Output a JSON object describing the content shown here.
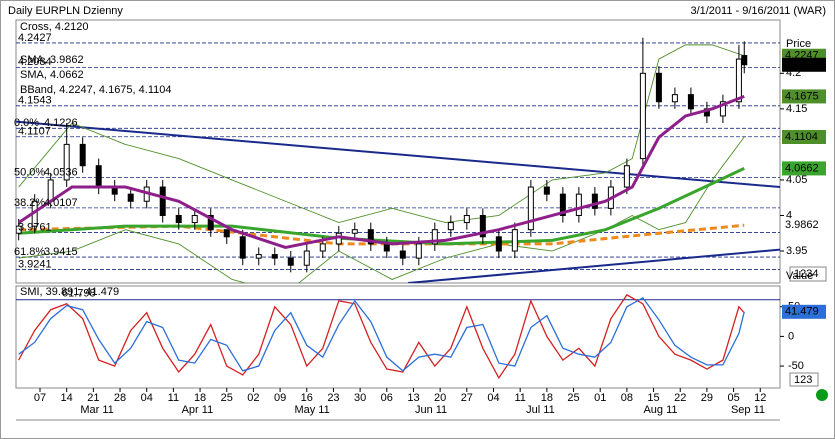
{
  "chart_data": [
    {
      "type": "candlestick",
      "title": "Daily EURPLN Dzienny",
      "subtitle": "3/1/2011 - 9/16/2011 (WAR)",
      "price_legend": "Cross, 4.2120",
      "axis_label": "Price",
      "corner_label": "1234",
      "candle_color": "#000000",
      "x": [
        0,
        3,
        6,
        9,
        12,
        15,
        18,
        21,
        24,
        27,
        30,
        33,
        36,
        39,
        42,
        45,
        48,
        51,
        54,
        57,
        60,
        63,
        66,
        69,
        72,
        75,
        78,
        81,
        84,
        87,
        90,
        93,
        96,
        99,
        102,
        105,
        108,
        111,
        114,
        117,
        120,
        123,
        126,
        129,
        132,
        135,
        136
      ],
      "open": [
        3.975,
        3.985,
        4.02,
        4.05,
        4.1,
        4.07,
        4.04,
        4.03,
        4.02,
        4.04,
        4.0,
        3.99,
        4.0,
        3.98,
        3.97,
        3.94,
        3.945,
        3.94,
        3.93,
        3.95,
        3.96,
        3.975,
        3.98,
        3.96,
        3.95,
        3.94,
        3.96,
        3.98,
        3.99,
        4.0,
        3.97,
        3.95,
        3.98,
        4.04,
        4.03,
        4.0,
        4.03,
        4.01,
        4.04,
        4.08,
        4.2,
        4.16,
        4.17,
        4.15,
        4.14,
        4.16,
        4.225
      ],
      "high": [
        3.995,
        4.03,
        4.06,
        4.13,
        4.11,
        4.08,
        4.05,
        4.04,
        4.05,
        4.05,
        4.01,
        4.01,
        4.01,
        3.98,
        3.98,
        3.955,
        3.955,
        3.95,
        3.96,
        3.97,
        3.985,
        3.99,
        3.99,
        3.97,
        3.96,
        3.97,
        3.99,
        4.0,
        4.01,
        4.01,
        3.98,
        3.99,
        4.05,
        4.05,
        4.04,
        4.04,
        4.04,
        4.05,
        4.08,
        4.25,
        4.21,
        4.18,
        4.18,
        4.16,
        4.17,
        4.24,
        4.245
      ],
      "low": [
        3.965,
        3.975,
        4.01,
        4.04,
        4.06,
        4.03,
        4.02,
        4.01,
        4.01,
        3.99,
        3.98,
        3.98,
        3.97,
        3.96,
        3.93,
        3.93,
        3.93,
        3.92,
        3.92,
        3.94,
        3.95,
        3.965,
        3.95,
        3.94,
        3.93,
        3.93,
        3.95,
        3.97,
        3.98,
        3.96,
        3.94,
        3.94,
        3.97,
        4.02,
        3.99,
        3.99,
        4.0,
        4.0,
        4.03,
        4.07,
        4.15,
        4.15,
        4.14,
        4.13,
        4.13,
        4.15,
        4.2
      ],
      "close": [
        3.985,
        4.02,
        4.05,
        4.1,
        4.07,
        4.04,
        4.03,
        4.02,
        4.04,
        4.0,
        3.99,
        4.0,
        3.98,
        3.97,
        3.94,
        3.945,
        3.94,
        3.93,
        3.95,
        3.96,
        3.975,
        3.98,
        3.96,
        3.95,
        3.94,
        3.96,
        3.98,
        3.99,
        4.0,
        3.97,
        3.95,
        3.98,
        4.04,
        4.03,
        4.0,
        4.03,
        4.01,
        4.04,
        4.07,
        4.2,
        4.16,
        4.17,
        4.15,
        4.14,
        4.16,
        4.22,
        4.212
      ],
      "xlim": [
        -0.5,
        142.7
      ],
      "ylim": [
        3.905,
        4.275
      ],
      "yticks": [
        4.2,
        4.15,
        4.05,
        4,
        3.95
      ],
      "xticks": [
        {
          "value": 4,
          "label": "07"
        },
        {
          "value": 9,
          "label": "14"
        },
        {
          "value": 14,
          "label": "21"
        },
        {
          "value": 19,
          "label": "28"
        },
        {
          "value": 24,
          "label": "04"
        },
        {
          "value": 29,
          "label": "11"
        },
        {
          "value": 34,
          "label": "18"
        },
        {
          "value": 39,
          "label": "25"
        },
        {
          "value": 44,
          "label": "02"
        },
        {
          "value": 49,
          "label": "09"
        },
        {
          "value": 54,
          "label": "16"
        },
        {
          "value": 59,
          "label": "23"
        },
        {
          "value": 64,
          "label": "30"
        },
        {
          "value": 69,
          "label": "06"
        },
        {
          "value": 74,
          "label": "13"
        },
        {
          "value": 79,
          "label": "20"
        },
        {
          "value": 84,
          "label": "27"
        },
        {
          "value": 89,
          "label": "04"
        },
        {
          "value": 94,
          "label": "11"
        },
        {
          "value": 99,
          "label": "18"
        },
        {
          "value": 104,
          "label": "25"
        },
        {
          "value": 109,
          "label": "01"
        },
        {
          "value": 114,
          "label": "08"
        },
        {
          "value": 119,
          "label": "15"
        },
        {
          "value": 124,
          "label": "22"
        },
        {
          "value": 129,
          "label": "29"
        },
        {
          "value": 134,
          "label": "05"
        },
        {
          "value": 139,
          "label": "12"
        }
      ],
      "month_ticks": [
        {
          "value": 14.7,
          "label": "Mar 11"
        },
        {
          "value": 33.5,
          "label": "Apr 11"
        },
        {
          "value": 55,
          "label": "May 11"
        },
        {
          "value": 77.3,
          "label": "Jun 11"
        },
        {
          "value": 97.8,
          "label": "Jul 11"
        },
        {
          "value": 120.3,
          "label": "Aug 11"
        },
        {
          "value": 136.7,
          "label": "Sep 11"
        }
      ],
      "bband": {
        "name": "BBand, 4.2247, 4.1675, 4.1104",
        "color": "#4f8f2a",
        "middle_color": "#8e1f8a",
        "x": [
          0,
          10,
          20,
          30,
          40,
          50,
          60,
          70,
          80,
          90,
          100,
          110,
          115,
          120,
          125,
          130,
          136
        ],
        "upper": [
          4.04,
          4.13,
          4.1,
          4.08,
          4.05,
          4.02,
          3.99,
          4.01,
          3.99,
          4.0,
          4.05,
          4.06,
          4.08,
          4.22,
          4.24,
          4.24,
          4.2247
        ],
        "middle": [
          3.99,
          4.04,
          4.04,
          4.02,
          3.98,
          3.955,
          3.97,
          3.96,
          3.965,
          3.98,
          4.0,
          4.02,
          4.04,
          4.11,
          4.14,
          4.15,
          4.1675
        ],
        "lower": [
          3.94,
          3.95,
          3.98,
          3.96,
          3.91,
          3.89,
          3.95,
          3.91,
          3.94,
          3.96,
          3.95,
          3.98,
          4.0,
          3.98,
          3.99,
          4.05,
          4.1104
        ]
      },
      "series": [
        {
          "name": "SMA, 3.9862",
          "color": "#ee8a1c",
          "dashed": true,
          "x": [
            0,
            30,
            60,
            80,
            100,
            120,
            136
          ],
          "values": [
            3.98,
            3.985,
            3.96,
            3.96,
            3.96,
            3.975,
            3.9862
          ]
        },
        {
          "name": "SMA, 4.0662",
          "color": "#3aa52c",
          "dashed": false,
          "x": [
            0,
            20,
            40,
            60,
            80,
            100,
            110,
            120,
            130,
            136
          ],
          "values": [
            3.975,
            3.985,
            3.985,
            3.968,
            3.96,
            3.965,
            3.98,
            4.01,
            4.045,
            4.0662
          ]
        }
      ],
      "trendlines": [
        {
          "color": "#1a2a8c",
          "x": [
            -0.5,
            142.7
          ],
          "values": [
            4.132,
            4.04
          ]
        },
        {
          "color": "#1a2a8c",
          "x": [
            73,
            142.7
          ],
          "values": [
            3.905,
            3.952
          ]
        }
      ],
      "fib_levels": [
        {
          "value": 4.2427
        },
        {
          "value": 4.2084
        },
        {
          "value": 4.1543
        },
        {
          "value": 4.1226,
          "pct": "0.0%"
        },
        {
          "value": 4.1107
        },
        {
          "value": 4.0536,
          "pct": "50.0%"
        },
        {
          "value": 4.0107,
          "pct": "38.2%"
        },
        {
          "value": 3.9761
        },
        {
          "value": 3.9415,
          "pct": "61.8%"
        },
        {
          "value": 3.9241
        }
      ]
    },
    {
      "type": "line",
      "title": "SMI, 39.891, 41.479",
      "axis_label": "Value",
      "corner_label": "123",
      "x": [
        0,
        3,
        6,
        9,
        12,
        15,
        18,
        21,
        24,
        27,
        30,
        33,
        36,
        39,
        42,
        45,
        48,
        51,
        54,
        57,
        60,
        63,
        66,
        69,
        72,
        75,
        78,
        81,
        84,
        87,
        90,
        93,
        96,
        99,
        102,
        105,
        108,
        111,
        114,
        117,
        120,
        123,
        126,
        129,
        132,
        135,
        136
      ],
      "series": [
        {
          "color": "#d42020",
          "values": [
            -40,
            10,
            45,
            55,
            30,
            -40,
            -50,
            10,
            40,
            -20,
            -60,
            -30,
            20,
            -50,
            -65,
            -30,
            50,
            20,
            -50,
            -20,
            60,
            55,
            -10,
            -55,
            -60,
            -10,
            -50,
            -20,
            50,
            -20,
            -70,
            -30,
            60,
            0,
            -40,
            -20,
            -50,
            30,
            70,
            55,
            0,
            -30,
            -40,
            -55,
            -40,
            50,
            39.891
          ]
        },
        {
          "color": "#2b6fd8",
          "values": [
            -30,
            -10,
            30,
            52,
            45,
            -5,
            -45,
            -20,
            25,
            15,
            -40,
            -45,
            -5,
            -15,
            -58,
            -50,
            10,
            40,
            -15,
            -35,
            20,
            60,
            25,
            -35,
            -58,
            -35,
            -30,
            -35,
            15,
            20,
            -45,
            -50,
            15,
            35,
            -20,
            -30,
            -35,
            -10,
            50,
            65,
            28,
            -15,
            -35,
            -48,
            -48,
            5,
            41.479
          ]
        }
      ],
      "level": 61.798,
      "ylim": [
        -87,
        85
      ],
      "yticks": [
        50,
        0,
        -50
      ]
    }
  ]
}
